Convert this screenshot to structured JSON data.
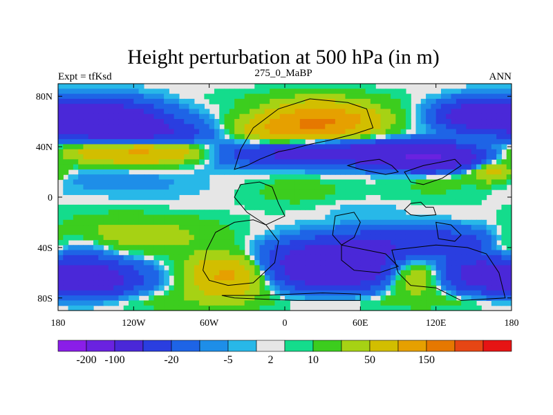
{
  "chart_data": {
    "type": "heatmap",
    "title": "Height perturbation at 500 hPa (in m)",
    "left_label": "Expt = tfKsd",
    "center_label": "275_0_MaBP",
    "right_label": "ANN",
    "xlim": [
      -180,
      180
    ],
    "ylim": [
      -90,
      90
    ],
    "x_ticks": [
      {
        "value": -180,
        "label": "180"
      },
      {
        "value": -120,
        "label": "120W"
      },
      {
        "value": -60,
        "label": "60W"
      },
      {
        "value": 0,
        "label": "0"
      },
      {
        "value": 60,
        "label": "60E"
      },
      {
        "value": 120,
        "label": "120E"
      },
      {
        "value": 180,
        "label": "180"
      }
    ],
    "y_ticks": [
      {
        "value": 80,
        "label": "80N"
      },
      {
        "value": 40,
        "label": "40N"
      },
      {
        "value": 0,
        "label": "0"
      },
      {
        "value": -40,
        "label": "40S"
      },
      {
        "value": -80,
        "label": "80S"
      }
    ],
    "colorbar": {
      "colors": [
        "#8a1ee8",
        "#6a22e0",
        "#4a28d8",
        "#2a3ee0",
        "#1e64e6",
        "#1e8ee8",
        "#28b8e8",
        "#e6e6e6",
        "#14dc8c",
        "#3ccd1e",
        "#a6d214",
        "#d2be00",
        "#e6a000",
        "#e67800",
        "#e64614",
        "#e61414"
      ],
      "labels": [
        {
          "label": "-200",
          "index": 1
        },
        {
          "label": "-100",
          "index": 2
        },
        {
          "label": "-20",
          "index": 4
        },
        {
          "label": "-5",
          "index": 6
        },
        {
          "label": "2",
          "index": 7.5
        },
        {
          "label": "10",
          "index": 9
        },
        {
          "label": "50",
          "index": 11
        },
        {
          "label": "150",
          "index": 13
        }
      ]
    },
    "field_blobs": [
      {
        "lon": -150,
        "lat": 62,
        "slon": 34,
        "slat": 10,
        "amp": -120
      },
      {
        "lon": -110,
        "lat": 50,
        "slon": 35,
        "slat": 8,
        "amp": -60
      },
      {
        "lon": -130,
        "lat": 36,
        "slon": 40,
        "slat": 7,
        "amp": 60
      },
      {
        "lon": -90,
        "lat": 36,
        "slon": 30,
        "slat": 6,
        "amp": 40
      },
      {
        "lon": -150,
        "lat": 14,
        "slon": 35,
        "slat": 8,
        "amp": -8
      },
      {
        "lon": -100,
        "lat": 10,
        "slon": 30,
        "slat": 8,
        "amp": -5
      },
      {
        "lon": -160,
        "lat": -8,
        "slon": 30,
        "slat": 6,
        "amp": 1
      },
      {
        "lon": -120,
        "lat": -30,
        "slon": 45,
        "slat": 10,
        "amp": 25
      },
      {
        "lon": -160,
        "lat": -65,
        "slon": 30,
        "slat": 10,
        "amp": -110
      },
      {
        "lon": -170,
        "lat": -45,
        "slon": 20,
        "slat": 8,
        "amp": -15
      },
      {
        "lon": -110,
        "lat": -82,
        "slon": 50,
        "slat": 6,
        "amp": 10
      },
      {
        "lon": -45,
        "lat": -62,
        "slon": 22,
        "slat": 12,
        "amp": 70
      },
      {
        "lon": -20,
        "lat": -44,
        "slon": 25,
        "slat": 6,
        "amp": -6
      },
      {
        "lon": -10,
        "lat": -80,
        "slon": 20,
        "slat": 6,
        "amp": -3
      },
      {
        "lon": 30,
        "lat": 60,
        "slon": 30,
        "slat": 10,
        "amp": 100
      },
      {
        "lon": -10,
        "lat": 52,
        "slon": 25,
        "slat": 8,
        "amp": 40
      },
      {
        "lon": 10,
        "lat": 78,
        "slon": 60,
        "slat": 6,
        "amp": 5
      },
      {
        "lon": 40,
        "lat": 35,
        "slon": 70,
        "slat": 7,
        "amp": -90
      },
      {
        "lon": 115,
        "lat": 30,
        "slon": 25,
        "slat": 7,
        "amp": -130
      },
      {
        "lon": 150,
        "lat": 65,
        "slon": 20,
        "slat": 8,
        "amp": -90
      },
      {
        "lon": 120,
        "lat": 20,
        "slon": 25,
        "slat": 6,
        "amp": 20
      },
      {
        "lon": 165,
        "lat": 20,
        "slon": 12,
        "slat": 6,
        "amp": 40
      },
      {
        "lon": 10,
        "lat": 5,
        "slon": 30,
        "slat": 10,
        "amp": 8
      },
      {
        "lon": 60,
        "lat": -10,
        "slon": 25,
        "slat": 5,
        "amp": -5
      },
      {
        "lon": 120,
        "lat": 5,
        "slon": 30,
        "slat": 8,
        "amp": 5
      },
      {
        "lon": 40,
        "lat": -55,
        "slon": 35,
        "slat": 12,
        "amp": -140
      },
      {
        "lon": 110,
        "lat": -35,
        "slon": 50,
        "slat": 8,
        "amp": -50
      },
      {
        "lon": 100,
        "lat": -62,
        "slon": 18,
        "slat": 10,
        "amp": 50
      },
      {
        "lon": 150,
        "lat": -60,
        "slon": 20,
        "slat": 10,
        "amp": -60
      },
      {
        "lon": 175,
        "lat": -40,
        "slon": 12,
        "slat": 8,
        "amp": 30
      },
      {
        "lon": 40,
        "lat": -82,
        "slon": 60,
        "slat": 5,
        "amp": 8
      },
      {
        "lon": 150,
        "lat": -82,
        "slon": 40,
        "slat": 5,
        "amp": 8
      }
    ],
    "continents": [
      [
        [
          -40,
          22
        ],
        [
          -35,
          38
        ],
        [
          -25,
          55
        ],
        [
          -5,
          70
        ],
        [
          20,
          78
        ],
        [
          50,
          75
        ],
        [
          65,
          70
        ],
        [
          70,
          55
        ],
        [
          55,
          50
        ],
        [
          35,
          45
        ],
        [
          20,
          42
        ],
        [
          5,
          38
        ],
        [
          -5,
          36
        ],
        [
          -20,
          30
        ],
        [
          -30,
          25
        ]
      ],
      [
        [
          -35,
          10
        ],
        [
          -20,
          12
        ],
        [
          -10,
          8
        ],
        [
          -5,
          -5
        ],
        [
          0,
          -15
        ],
        [
          -15,
          -22
        ],
        [
          -30,
          -12
        ],
        [
          -40,
          0
        ]
      ],
      [
        [
          -55,
          -28
        ],
        [
          -40,
          -20
        ],
        [
          -25,
          -18
        ],
        [
          -15,
          -22
        ],
        [
          -5,
          -35
        ],
        [
          -8,
          -52
        ],
        [
          -25,
          -68
        ],
        [
          -45,
          -70
        ],
        [
          -60,
          -66
        ],
        [
          -65,
          -58
        ],
        [
          -62,
          -42
        ]
      ],
      [
        [
          -20,
          -78
        ],
        [
          30,
          -76
        ],
        [
          60,
          -77
        ],
        [
          60,
          -82
        ],
        [
          10,
          -82
        ],
        [
          -40,
          -80
        ],
        [
          -50,
          -78
        ]
      ],
      [
        [
          40,
          -15
        ],
        [
          55,
          -12
        ],
        [
          60,
          -20
        ],
        [
          55,
          -32
        ],
        [
          45,
          -38
        ],
        [
          38,
          -30
        ]
      ],
      [
        [
          45,
          -38
        ],
        [
          65,
          -42
        ],
        [
          80,
          -45
        ],
        [
          90,
          -55
        ],
        [
          75,
          -60
        ],
        [
          55,
          -58
        ],
        [
          45,
          -50
        ]
      ],
      [
        [
          85,
          -42
        ],
        [
          120,
          -38
        ],
        [
          145,
          -40
        ],
        [
          160,
          -45
        ],
        [
          170,
          -60
        ],
        [
          175,
          -80
        ],
        [
          140,
          -82
        ],
        [
          120,
          -72
        ],
        [
          100,
          -70
        ],
        [
          90,
          -60
        ]
      ],
      [
        [
          95,
          20
        ],
        [
          110,
          25
        ],
        [
          125,
          28
        ],
        [
          135,
          30
        ],
        [
          140,
          25
        ],
        [
          125,
          15
        ],
        [
          110,
          10
        ],
        [
          100,
          12
        ]
      ],
      [
        [
          95,
          -10
        ],
        [
          100,
          -5
        ],
        [
          108,
          -4
        ],
        [
          112,
          -8
        ],
        [
          118,
          -8
        ],
        [
          120,
          -14
        ],
        [
          108,
          -15
        ],
        [
          100,
          -14
        ]
      ],
      [
        [
          120,
          -20
        ],
        [
          132,
          -22
        ],
        [
          140,
          -30
        ],
        [
          135,
          -35
        ],
        [
          122,
          -33
        ]
      ],
      [
        [
          50,
          25
        ],
        [
          60,
          28
        ],
        [
          75,
          30
        ],
        [
          85,
          25
        ],
        [
          90,
          20
        ],
        [
          80,
          18
        ],
        [
          70,
          20
        ],
        [
          60,
          22
        ]
      ]
    ]
  }
}
